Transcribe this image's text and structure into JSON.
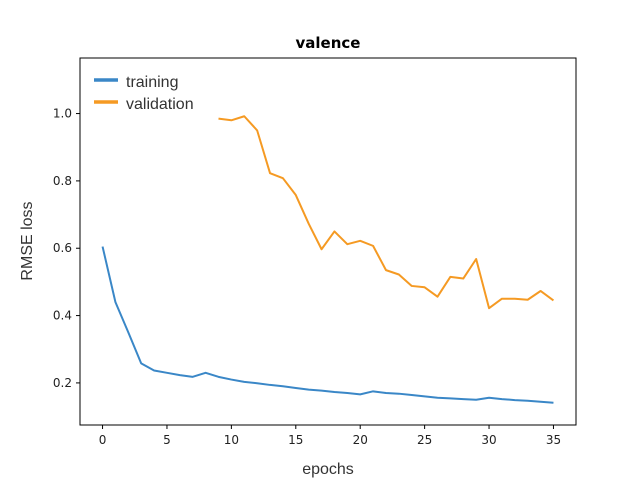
{
  "chart_data": {
    "type": "line",
    "title": "valence",
    "xlabel": "epochs",
    "ylabel": "RMSE loss",
    "xlim": [
      -1.75,
      36.75
    ],
    "ylim": [
      0.075,
      1.165
    ],
    "xticks": [
      0,
      5,
      10,
      15,
      20,
      25,
      30,
      35
    ],
    "yticks": [
      0.2,
      0.4,
      0.6,
      0.8,
      1.0
    ],
    "ytick_labels": [
      "0.2",
      "0.4",
      "0.6",
      "0.8",
      "1.0"
    ],
    "grid": false,
    "legend_position": "top-left",
    "series": [
      {
        "name": "training",
        "color": "#3a87c7",
        "x": [
          0,
          1,
          2,
          3,
          4,
          5,
          6,
          7,
          8,
          9,
          10,
          11,
          12,
          13,
          14,
          15,
          16,
          17,
          18,
          19,
          20,
          21,
          22,
          23,
          24,
          25,
          26,
          27,
          28,
          29,
          30,
          31,
          32,
          33,
          34,
          35
        ],
        "values": [
          0.605,
          0.44,
          0.35,
          0.258,
          0.237,
          0.23,
          0.223,
          0.218,
          0.23,
          0.218,
          0.21,
          0.203,
          0.199,
          0.194,
          0.19,
          0.185,
          0.18,
          0.177,
          0.173,
          0.17,
          0.166,
          0.175,
          0.17,
          0.168,
          0.164,
          0.16,
          0.156,
          0.154,
          0.152,
          0.15,
          0.156,
          0.152,
          0.149,
          0.147,
          0.144,
          0.141
        ]
      },
      {
        "name": "validation",
        "color": "#f59a23",
        "x": [
          9,
          10,
          11,
          12,
          13,
          14,
          15,
          16,
          17,
          18,
          19,
          20,
          21,
          22,
          23,
          24,
          25,
          26,
          27,
          28,
          29,
          30,
          31,
          32,
          33,
          34,
          35
        ],
        "values": [
          0.985,
          0.98,
          0.992,
          0.95,
          0.823,
          0.808,
          0.758,
          0.673,
          0.597,
          0.65,
          0.612,
          0.622,
          0.607,
          0.535,
          0.522,
          0.488,
          0.484,
          0.456,
          0.515,
          0.51,
          0.568,
          0.422,
          0.45,
          0.45,
          0.447,
          0.473,
          0.445
        ]
      }
    ]
  }
}
